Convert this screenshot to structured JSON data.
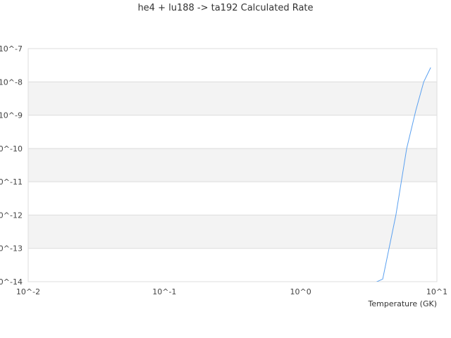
{
  "chart_data": {
    "type": "line",
    "title": "he4 + lu188 -> ta192 Calculated Rate",
    "xlabel": "Temperature (GK)",
    "ylabel": "",
    "xscale": "log",
    "yscale": "log",
    "xlim": [
      0.01,
      10
    ],
    "ylim": [
      1e-14,
      1e-07
    ],
    "x_ticks": [
      "10^-2",
      "10^-1",
      "10^0",
      "10^1"
    ],
    "y_ticks": [
      "10^-7",
      "10^-8",
      "10^-9",
      "10^-10",
      "10^-11",
      "10^-12",
      "10^-13",
      "10^-14"
    ],
    "grid": "horizontal alternating bands",
    "series": [
      {
        "color": "#5aa0f0",
        "x": [
          3,
          4,
          5,
          6,
          7,
          8,
          9
        ],
        "y": [
          7e-15,
          1.2e-14,
          1e-12,
          1e-10,
          1.4e-09,
          1e-08,
          2.7e-08
        ]
      }
    ]
  }
}
